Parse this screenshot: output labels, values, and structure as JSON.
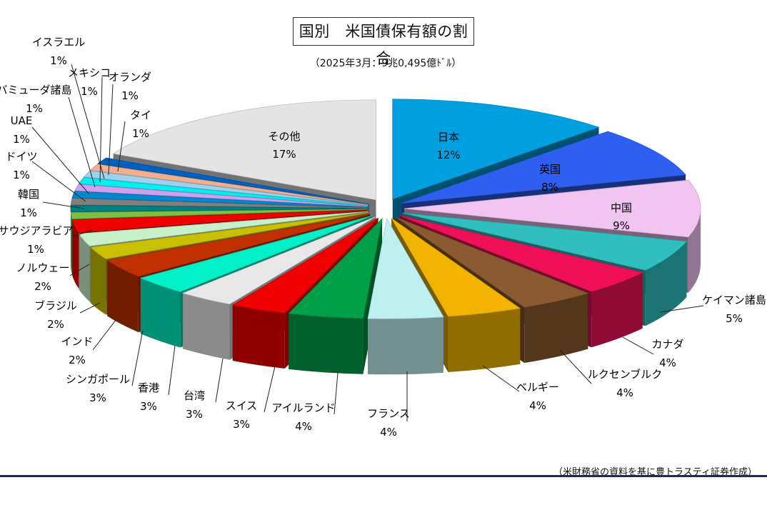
{
  "header": {
    "title": "国別　米国債保有額の割合",
    "subtitle": "（2025年3月：9兆0,495億ﾄﾞﾙ）"
  },
  "footer": {
    "source": "（米財務省の資料を基に豊トラスティ証券作成）"
  },
  "chart_data": {
    "type": "pie",
    "title": "国別　米国債保有額の割合",
    "subtitle": "（2025年3月：9兆0,495億ﾄﾞﾙ）",
    "unit": "%",
    "slices": [
      {
        "label": "日本",
        "value": 12,
        "color": "#00a0e0"
      },
      {
        "label": "英国",
        "value": 8,
        "color": "#2f5ff0"
      },
      {
        "label": "中国",
        "value": 9,
        "color": "#f2c4f2"
      },
      {
        "label": "ケイマン諸島",
        "value": 5,
        "color": "#2fbfbf"
      },
      {
        "label": "カナダ",
        "value": 4,
        "color": "#f0105a"
      },
      {
        "label": "ルクセンブルク",
        "value": 4,
        "color": "#8c5a30"
      },
      {
        "label": "ベルギー",
        "value": 4,
        "color": "#f2b400"
      },
      {
        "label": "フランス",
        "value": 4,
        "color": "#bff0f0"
      },
      {
        "label": "アイルランド",
        "value": 4,
        "color": "#00a04a"
      },
      {
        "label": "スイス",
        "value": 3,
        "color": "#f00000"
      },
      {
        "label": "台湾",
        "value": 3,
        "color": "#e8e8e8"
      },
      {
        "label": "香港",
        "value": 3,
        "color": "#00f0c8"
      },
      {
        "label": "シンガポール",
        "value": 3,
        "color": "#c03000"
      },
      {
        "label": "インド",
        "value": 2,
        "color": "#c8c000"
      },
      {
        "label": "ブラジル",
        "value": 2,
        "color": "#c8f0c8"
      },
      {
        "label": "ノルウェー",
        "value": 2,
        "color": "#f00000"
      },
      {
        "label": "サウジアラビア",
        "value": 1,
        "color": "#80c040"
      },
      {
        "label": "韓国",
        "value": 1,
        "color": "#008080"
      },
      {
        "label": "ドイツ",
        "value": 1,
        "color": "#808080"
      },
      {
        "label": "UAE",
        "value": 1,
        "color": "#0088d0"
      },
      {
        "label": "バミューダ諸島",
        "value": 1,
        "color": "#d0a0f0"
      },
      {
        "label": "メキシコ",
        "value": 1,
        "color": "#00f0f0"
      },
      {
        "label": "イスラエル",
        "value": 1,
        "color": "#a0d0f0"
      },
      {
        "label": "オランダ",
        "value": 1,
        "color": "#f0b090"
      },
      {
        "label": "タイ",
        "value": 1,
        "color": "#0060c0"
      },
      {
        "label": "その他",
        "value": 17,
        "color": "#e4e4e4"
      }
    ]
  }
}
